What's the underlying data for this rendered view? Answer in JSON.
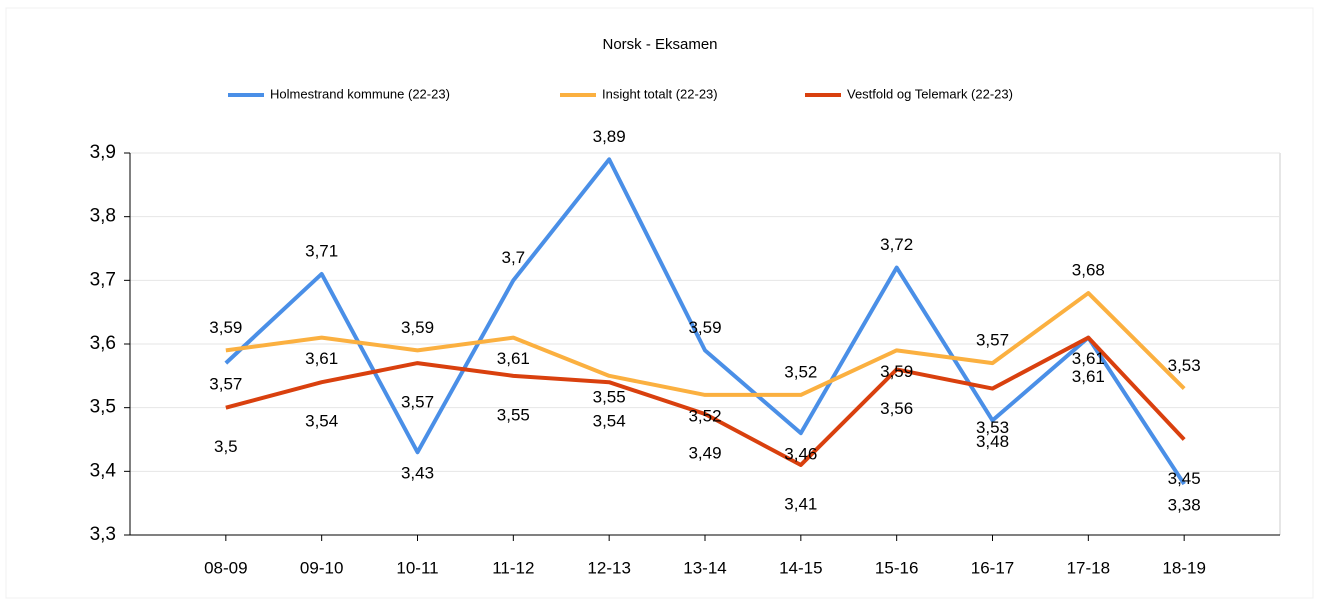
{
  "chart_data": {
    "type": "line",
    "title": "Norsk - Eksamen",
    "categories": [
      "08-09",
      "09-10",
      "10-11",
      "11-12",
      "12-13",
      "13-14",
      "14-15",
      "15-16",
      "16-17",
      "17-18",
      "18-19"
    ],
    "series": [
      {
        "name": "Holmestrand kommune (22-23)",
        "color": "#4a8fe7",
        "values": [
          3.57,
          3.71,
          3.43,
          3.7,
          3.89,
          3.59,
          3.46,
          3.72,
          3.48,
          3.61,
          3.38
        ],
        "value_labels": [
          "3,57",
          "3,71",
          "3,43",
          "3,7",
          "3,89",
          "3,59",
          "3,46",
          "3,72",
          "3,48",
          "3,61",
          "3,38"
        ]
      },
      {
        "name": "Insight totalt (22-23)",
        "color": "#fbb040",
        "values": [
          3.59,
          3.61,
          3.59,
          3.61,
          3.55,
          3.52,
          3.52,
          3.59,
          3.57,
          3.68,
          3.53
        ],
        "value_labels": [
          "3,59",
          "3,61",
          "3,59",
          "3,61",
          "3,55",
          "3,52",
          "3,52",
          "3,59",
          "3,57",
          "3,68",
          "3,53"
        ]
      },
      {
        "name": "Vestfold og Telemark (22-23)",
        "color": "#d9400e",
        "values": [
          3.5,
          3.54,
          3.57,
          3.55,
          3.54,
          3.49,
          3.41,
          3.56,
          3.53,
          3.61,
          3.45
        ],
        "value_labels": [
          "3,5",
          "3,54",
          "3,57",
          "3,55",
          "3,54",
          "3,49",
          "3,41",
          "3,56",
          "3,53",
          "3,61",
          "3,45"
        ]
      }
    ],
    "ylim": [
      3.3,
      3.9
    ],
    "yticks": [
      {
        "value": 3.3,
        "label": "3,3"
      },
      {
        "value": 3.4,
        "label": "3,4"
      },
      {
        "value": 3.5,
        "label": "3,5"
      },
      {
        "value": 3.6,
        "label": "3,6"
      },
      {
        "value": 3.7,
        "label": "3,7"
      },
      {
        "value": 3.8,
        "label": "3,8"
      },
      {
        "value": 3.9,
        "label": "3,9"
      }
    ],
    "grid": true,
    "legend": "top"
  }
}
